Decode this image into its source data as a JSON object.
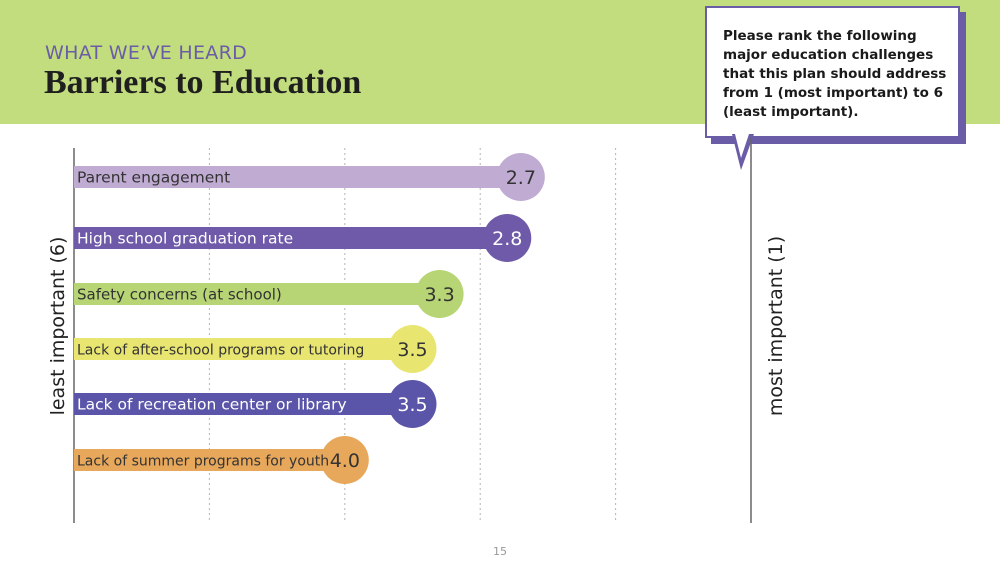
{
  "header": {
    "kicker": "WHAT WE’VE HEARD",
    "title": "Barriers to Education"
  },
  "callout": {
    "text": "Please rank the following major education challenges that this plan should address from 1 (most important) to 6 (least important)."
  },
  "axes": {
    "left_label": "least important (6)",
    "right_label": "most important (1)"
  },
  "page_number": "15",
  "colors": {
    "header_bg": "#c2dd7d",
    "accent_purple": "#6b5ca8"
  },
  "chart_data": {
    "type": "bar",
    "orientation": "horizontal",
    "xlim": [
      6,
      1
    ],
    "grid": true,
    "categories": [
      "Parent engagement",
      "High school graduation rate",
      "Safety concerns (at school)",
      "Lack of after-school programs or tutoring",
      "Lack of recreation center or library",
      "Lack of summer programs for youth"
    ],
    "values": [
      2.7,
      2.8,
      3.3,
      3.5,
      3.5,
      4.0
    ],
    "value_labels": [
      "2.7",
      "2.8",
      "3.3",
      "3.5",
      "3.5",
      "4.0"
    ],
    "colors": [
      "#c0abd3",
      "#6e5aa8",
      "#b7d574",
      "#e8e571",
      "#5a55a8",
      "#e8a85b"
    ],
    "label_colors": [
      "#333333",
      "#ffffff",
      "#333333",
      "#333333",
      "#ffffff",
      "#333333"
    ]
  }
}
